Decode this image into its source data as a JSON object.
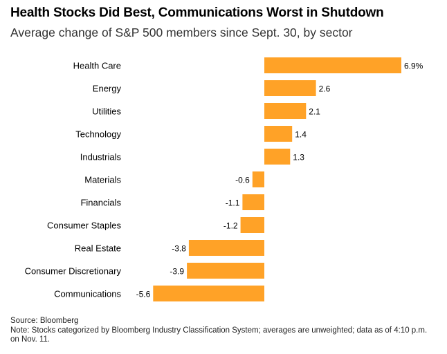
{
  "header": {
    "title": "Health Stocks Did Best, Communications Worst in Shutdown",
    "subtitle": "Average change of S&P 500 members since Sept. 30, by sector"
  },
  "footer": {
    "source": "Source: Bloomberg",
    "note": "Note: Stocks categorized by Bloomberg Industry Classification System; averages are unweighted; data as of 4:10 p.m. on Nov. 11."
  },
  "colors": {
    "bar": "#FFA227"
  },
  "chart_data": {
    "type": "bar",
    "orientation": "horizontal",
    "title": "Health Stocks Did Best, Communications Worst in Shutdown",
    "subtitle": "Average change of S&P 500 members since Sept. 30, by sector",
    "categories": [
      "Health Care",
      "Energy",
      "Utilities",
      "Technology",
      "Industrials",
      "Materials",
      "Financials",
      "Consumer Staples",
      "Real Estate",
      "Consumer Discretionary",
      "Communications"
    ],
    "values": [
      6.9,
      2.6,
      2.1,
      1.4,
      1.3,
      -0.6,
      -1.1,
      -1.2,
      -3.8,
      -3.9,
      -5.6
    ],
    "value_labels": [
      "6.9%",
      "2.6",
      "2.1",
      "1.4",
      "1.3",
      "-0.6",
      "-1.1",
      "-1.2",
      "-3.8",
      "-3.9",
      "-5.6"
    ],
    "xlim": [
      -5.6,
      6.9
    ],
    "grid": false,
    "legend": "none"
  }
}
